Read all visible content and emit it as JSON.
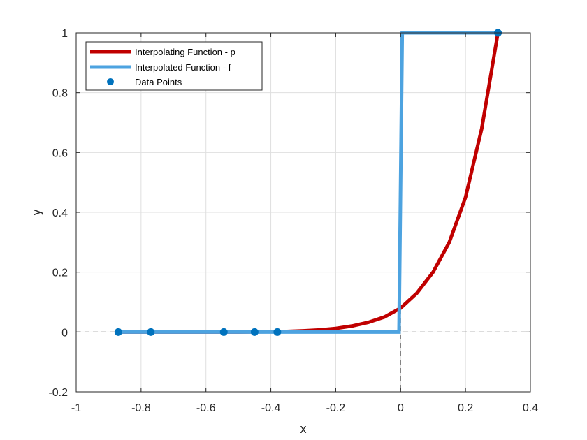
{
  "chart_data": {
    "type": "line",
    "xlabel": "x",
    "ylabel": "y",
    "xlim": [
      -1,
      0.4
    ],
    "ylim": [
      -0.2,
      1
    ],
    "grid": true,
    "legend_position": "top-left",
    "xticks": [
      -1,
      -0.8,
      -0.6,
      -0.4,
      -0.2,
      0,
      0.2,
      0.4
    ],
    "xtick_labels": [
      "-1",
      "-0.8",
      "-0.6",
      "-0.4",
      "-0.2",
      "0",
      "0.2",
      "0.4"
    ],
    "yticks": [
      -0.2,
      0,
      0.2,
      0.4,
      0.6,
      0.8,
      1
    ],
    "ytick_labels": [
      "-0.2",
      "0",
      "0.2",
      "0.4",
      "0.6",
      "0.8",
      "1"
    ],
    "reference_lines": [
      {
        "orientation": "horizontal",
        "value": 0,
        "style": "dashed",
        "color": "#000000"
      },
      {
        "orientation": "vertical",
        "value": 0,
        "style": "dashed",
        "color": "#000000"
      }
    ],
    "series": [
      {
        "name": "Interpolating Function - p",
        "type": "line",
        "color": "#C00000",
        "x": [
          -0.87,
          -0.8,
          -0.7,
          -0.6,
          -0.5,
          -0.45,
          -0.4,
          -0.35,
          -0.3,
          -0.25,
          -0.2,
          -0.15,
          -0.1,
          -0.05,
          0,
          0.05,
          0.1,
          0.15,
          0.2,
          0.25,
          0.3
        ],
        "y": [
          0,
          0,
          0,
          0,
          0,
          0.0005,
          0.001,
          0.002,
          0.004,
          0.007,
          0.012,
          0.02,
          0.032,
          0.05,
          0.08,
          0.13,
          0.2,
          0.3,
          0.45,
          0.68,
          1.0
        ]
      },
      {
        "name": "Interpolated Function - f",
        "type": "line",
        "color": "#4DA3E0",
        "x": [
          -0.87,
          -0.005,
          0.005,
          0.3
        ],
        "y": [
          0,
          0,
          1,
          1
        ]
      },
      {
        "name": "Data Points",
        "type": "scatter",
        "color": "#0072BD",
        "x": [
          -0.87,
          -0.77,
          -0.545,
          -0.45,
          -0.38,
          0.3
        ],
        "y": [
          0,
          0,
          0,
          0,
          0,
          1
        ]
      }
    ]
  }
}
